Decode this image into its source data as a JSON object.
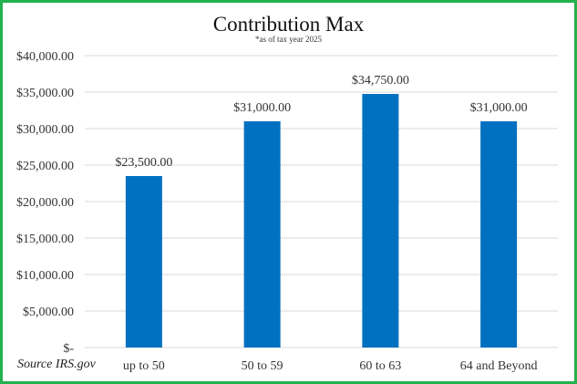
{
  "chart_data": {
    "type": "bar",
    "title": "Contribution Max",
    "subtitle": "*as of tax year 2025",
    "categories": [
      "up to 50",
      "50 to 59",
      "60 to 63",
      "64 and Beyond"
    ],
    "values": [
      23500,
      31000,
      34750,
      31000
    ],
    "data_labels": [
      "$23,500.00",
      "$31,000.00",
      "$34,750.00",
      "$31,000.00"
    ],
    "yticks": [
      0,
      5000,
      10000,
      15000,
      20000,
      25000,
      30000,
      35000,
      40000
    ],
    "ytick_labels": [
      "$-",
      "$5,000.00",
      "$10,000.00",
      "$15,000.00",
      "$20,000.00",
      "$25,000.00",
      "$30,000.00",
      "$35,000.00",
      "$40,000.00"
    ],
    "ylim": [
      0,
      40000
    ],
    "grid": true,
    "legend": "none",
    "bar_color": "#0070c0",
    "xlabel": "",
    "ylabel": ""
  },
  "source": "Source IRS.gov",
  "colors": {
    "border": "#22b14c",
    "bar": "#0070c0",
    "grid": "#d9d9d9"
  }
}
